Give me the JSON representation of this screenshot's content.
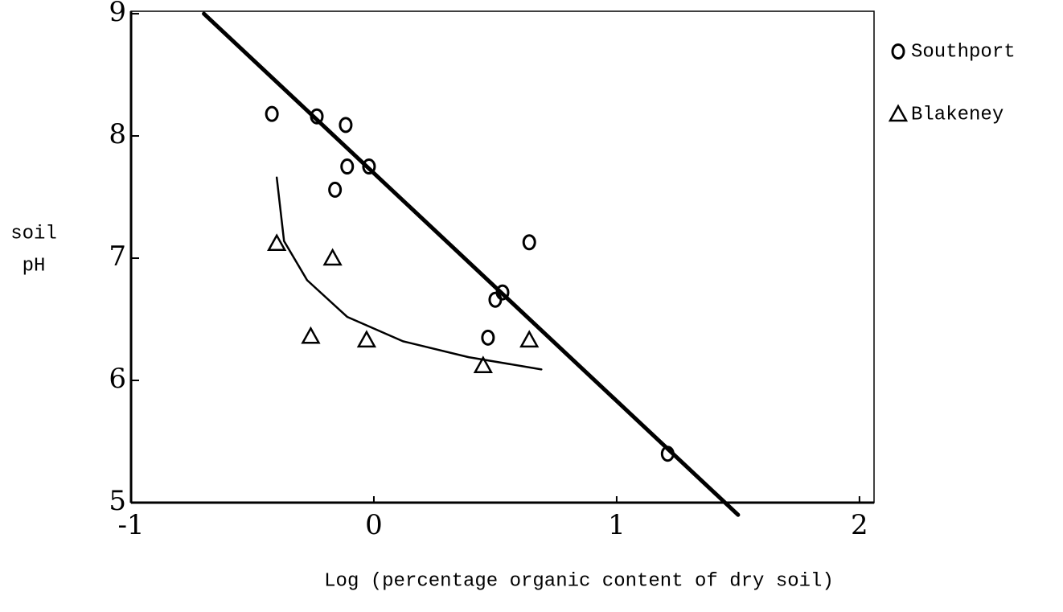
{
  "chart_data": {
    "type": "scatter",
    "xlabel": "Log (percentage organic content of dry soil)",
    "ylabel": [
      "soil",
      "pH"
    ],
    "xlim": [
      -1,
      2.06
    ],
    "ylim": [
      5,
      9.02
    ],
    "xticks": [
      -1,
      0,
      1,
      2
    ],
    "yticks": [
      5,
      6,
      7,
      8,
      9
    ],
    "legend": "right",
    "series": [
      {
        "name": "Southport",
        "marker": "circle",
        "color": "#000000",
        "x": [
          -0.42,
          -0.235,
          -0.116,
          -0.11,
          -0.02,
          -0.16,
          0.64,
          0.53,
          0.5,
          0.47,
          1.21
        ],
        "y": [
          8.18,
          8.16,
          8.09,
          7.75,
          7.75,
          7.56,
          7.13,
          6.72,
          6.66,
          6.35,
          5.4
        ]
      },
      {
        "name": "Blakeney",
        "marker": "triangle",
        "color": "#000000",
        "x": [
          -0.4,
          -0.17,
          -0.26,
          -0.03,
          0.45,
          0.64
        ],
        "y": [
          7.12,
          7.0,
          6.36,
          6.33,
          6.12,
          6.33
        ]
      }
    ],
    "lines": [
      {
        "color": "#000000",
        "x": [
          -0.7,
          1.5
        ],
        "y": [
          9.0,
          4.9
        ]
      },
      {
        "color": "#000000",
        "x": [
          -0.4,
          -0.37,
          -0.275,
          -0.11,
          0.12,
          0.39,
          0.69
        ],
        "y": [
          7.66,
          7.14,
          6.82,
          6.52,
          6.32,
          6.19,
          6.09
        ]
      }
    ]
  }
}
